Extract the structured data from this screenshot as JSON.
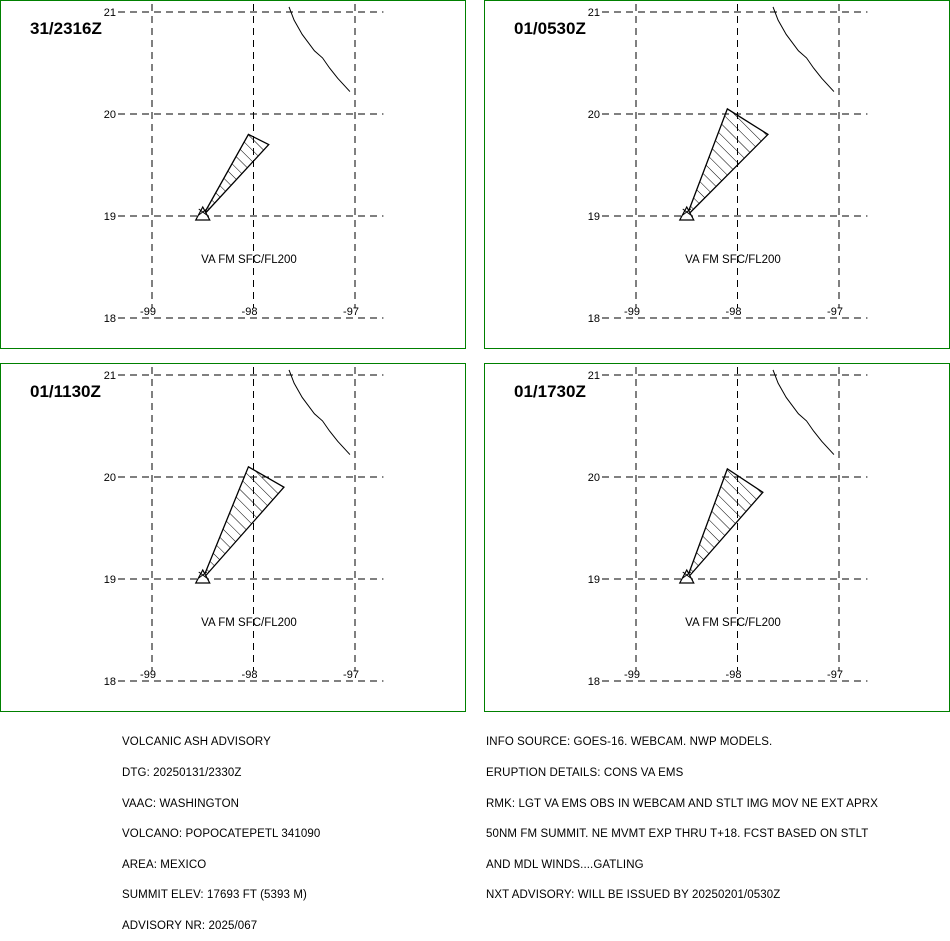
{
  "colors": {
    "frame": "#008000",
    "lines": "#000000",
    "background": "#ffffff"
  },
  "icons": {
    "volcano": "volcano-triangle-icon"
  },
  "panels": [
    {
      "time": "31/2316Z",
      "level": "VA FM SFC/FL200",
      "polygon": [
        [
          -98.5,
          19.0
        ],
        [
          -98.05,
          19.8
        ],
        [
          -97.85,
          19.7
        ]
      ]
    },
    {
      "time": "01/0530Z",
      "level": "VA FM SFC/FL200",
      "polygon": [
        [
          -98.5,
          19.0
        ],
        [
          -98.1,
          20.05
        ],
        [
          -97.7,
          19.8
        ]
      ]
    },
    {
      "time": "01/1130Z",
      "level": "VA FM SFC/FL200",
      "polygon": [
        [
          -98.5,
          19.0
        ],
        [
          -98.05,
          20.1
        ],
        [
          -97.7,
          19.9
        ]
      ]
    },
    {
      "time": "01/1730Z",
      "level": "VA FM SFC/FL200",
      "polygon": [
        [
          -98.5,
          19.0
        ],
        [
          -98.1,
          20.08
        ],
        [
          -97.75,
          19.85
        ]
      ]
    }
  ],
  "axes": {
    "lat_ticks": [
      "21",
      "20",
      "19",
      "18"
    ],
    "lon_ticks": [
      "-99",
      "-98",
      "-97"
    ],
    "lat_values": [
      21,
      20,
      19,
      18
    ],
    "lon_values": [
      -99,
      -98,
      -97
    ]
  },
  "coastline": [
    [
      -97.65,
      21.05
    ],
    [
      -97.6,
      20.92
    ],
    [
      -97.52,
      20.78
    ],
    [
      -97.4,
      20.62
    ],
    [
      -97.32,
      20.55
    ],
    [
      -97.25,
      20.45
    ],
    [
      -97.17,
      20.35
    ],
    [
      -97.05,
      20.22
    ]
  ],
  "volcano": {
    "lon": -98.5,
    "lat": 19.0
  },
  "advisory_left": [
    "VOLCANIC ASH ADVISORY",
    "DTG: 20250131/2330Z",
    "VAAC: WASHINGTON",
    "VOLCANO: POPOCATEPETL 341090",
    "AREA: MEXICO",
    "SUMMIT ELEV: 17693 FT (5393 M)",
    "ADVISORY NR: 2025/067"
  ],
  "advisory_right": [
    "INFO SOURCE: GOES-16. WEBCAM. NWP MODELS.",
    "ERUPTION DETAILS: CONS VA EMS",
    "RMK: LGT VA EMS OBS IN WEBCAM AND STLT IMG MOV NE EXT APRX",
    "50NM FM SUMMIT. NE MVMT EXP THRU T+18. FCST BASED ON STLT",
    "AND MDL WINDS....GATLING",
    "NXT ADVISORY: WILL BE ISSUED BY 20250201/0530Z"
  ]
}
